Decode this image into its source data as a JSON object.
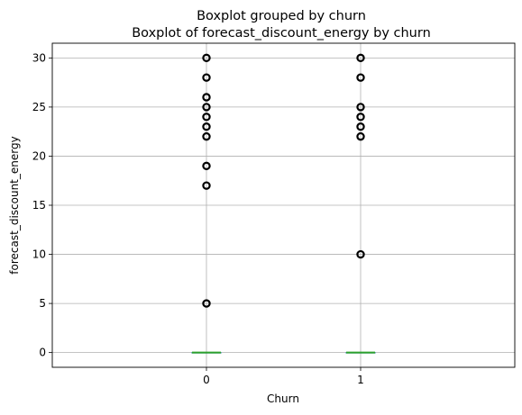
{
  "chart_data": {
    "type": "boxplot",
    "suptitle": "Boxplot grouped by churn",
    "title": "Boxplot of forecast_discount_energy by churn",
    "xlabel": "Churn",
    "ylabel": "forecast_discount_energy",
    "categories": [
      "0",
      "1"
    ],
    "ylim": [
      -1.5,
      31.5
    ],
    "yticks": [
      0,
      5,
      10,
      15,
      20,
      25,
      30
    ],
    "grid": true,
    "boxes": [
      {
        "category": "0",
        "min": 0,
        "q1": 0,
        "median": 0,
        "q3": 0,
        "max": 0,
        "outliers": [
          5,
          17,
          19,
          22,
          23,
          24,
          25,
          26,
          28,
          30
        ]
      },
      {
        "category": "1",
        "min": 0,
        "q1": 0,
        "median": 0,
        "q3": 0,
        "max": 0,
        "outliers": [
          10,
          22,
          23,
          24,
          25,
          28,
          30
        ]
      }
    ],
    "colors": {
      "box": "#1f77b4",
      "median": "#2ca02c",
      "whisker": "#1f77b4",
      "outlier": "#000000",
      "grid": "#b0b0b0"
    }
  }
}
